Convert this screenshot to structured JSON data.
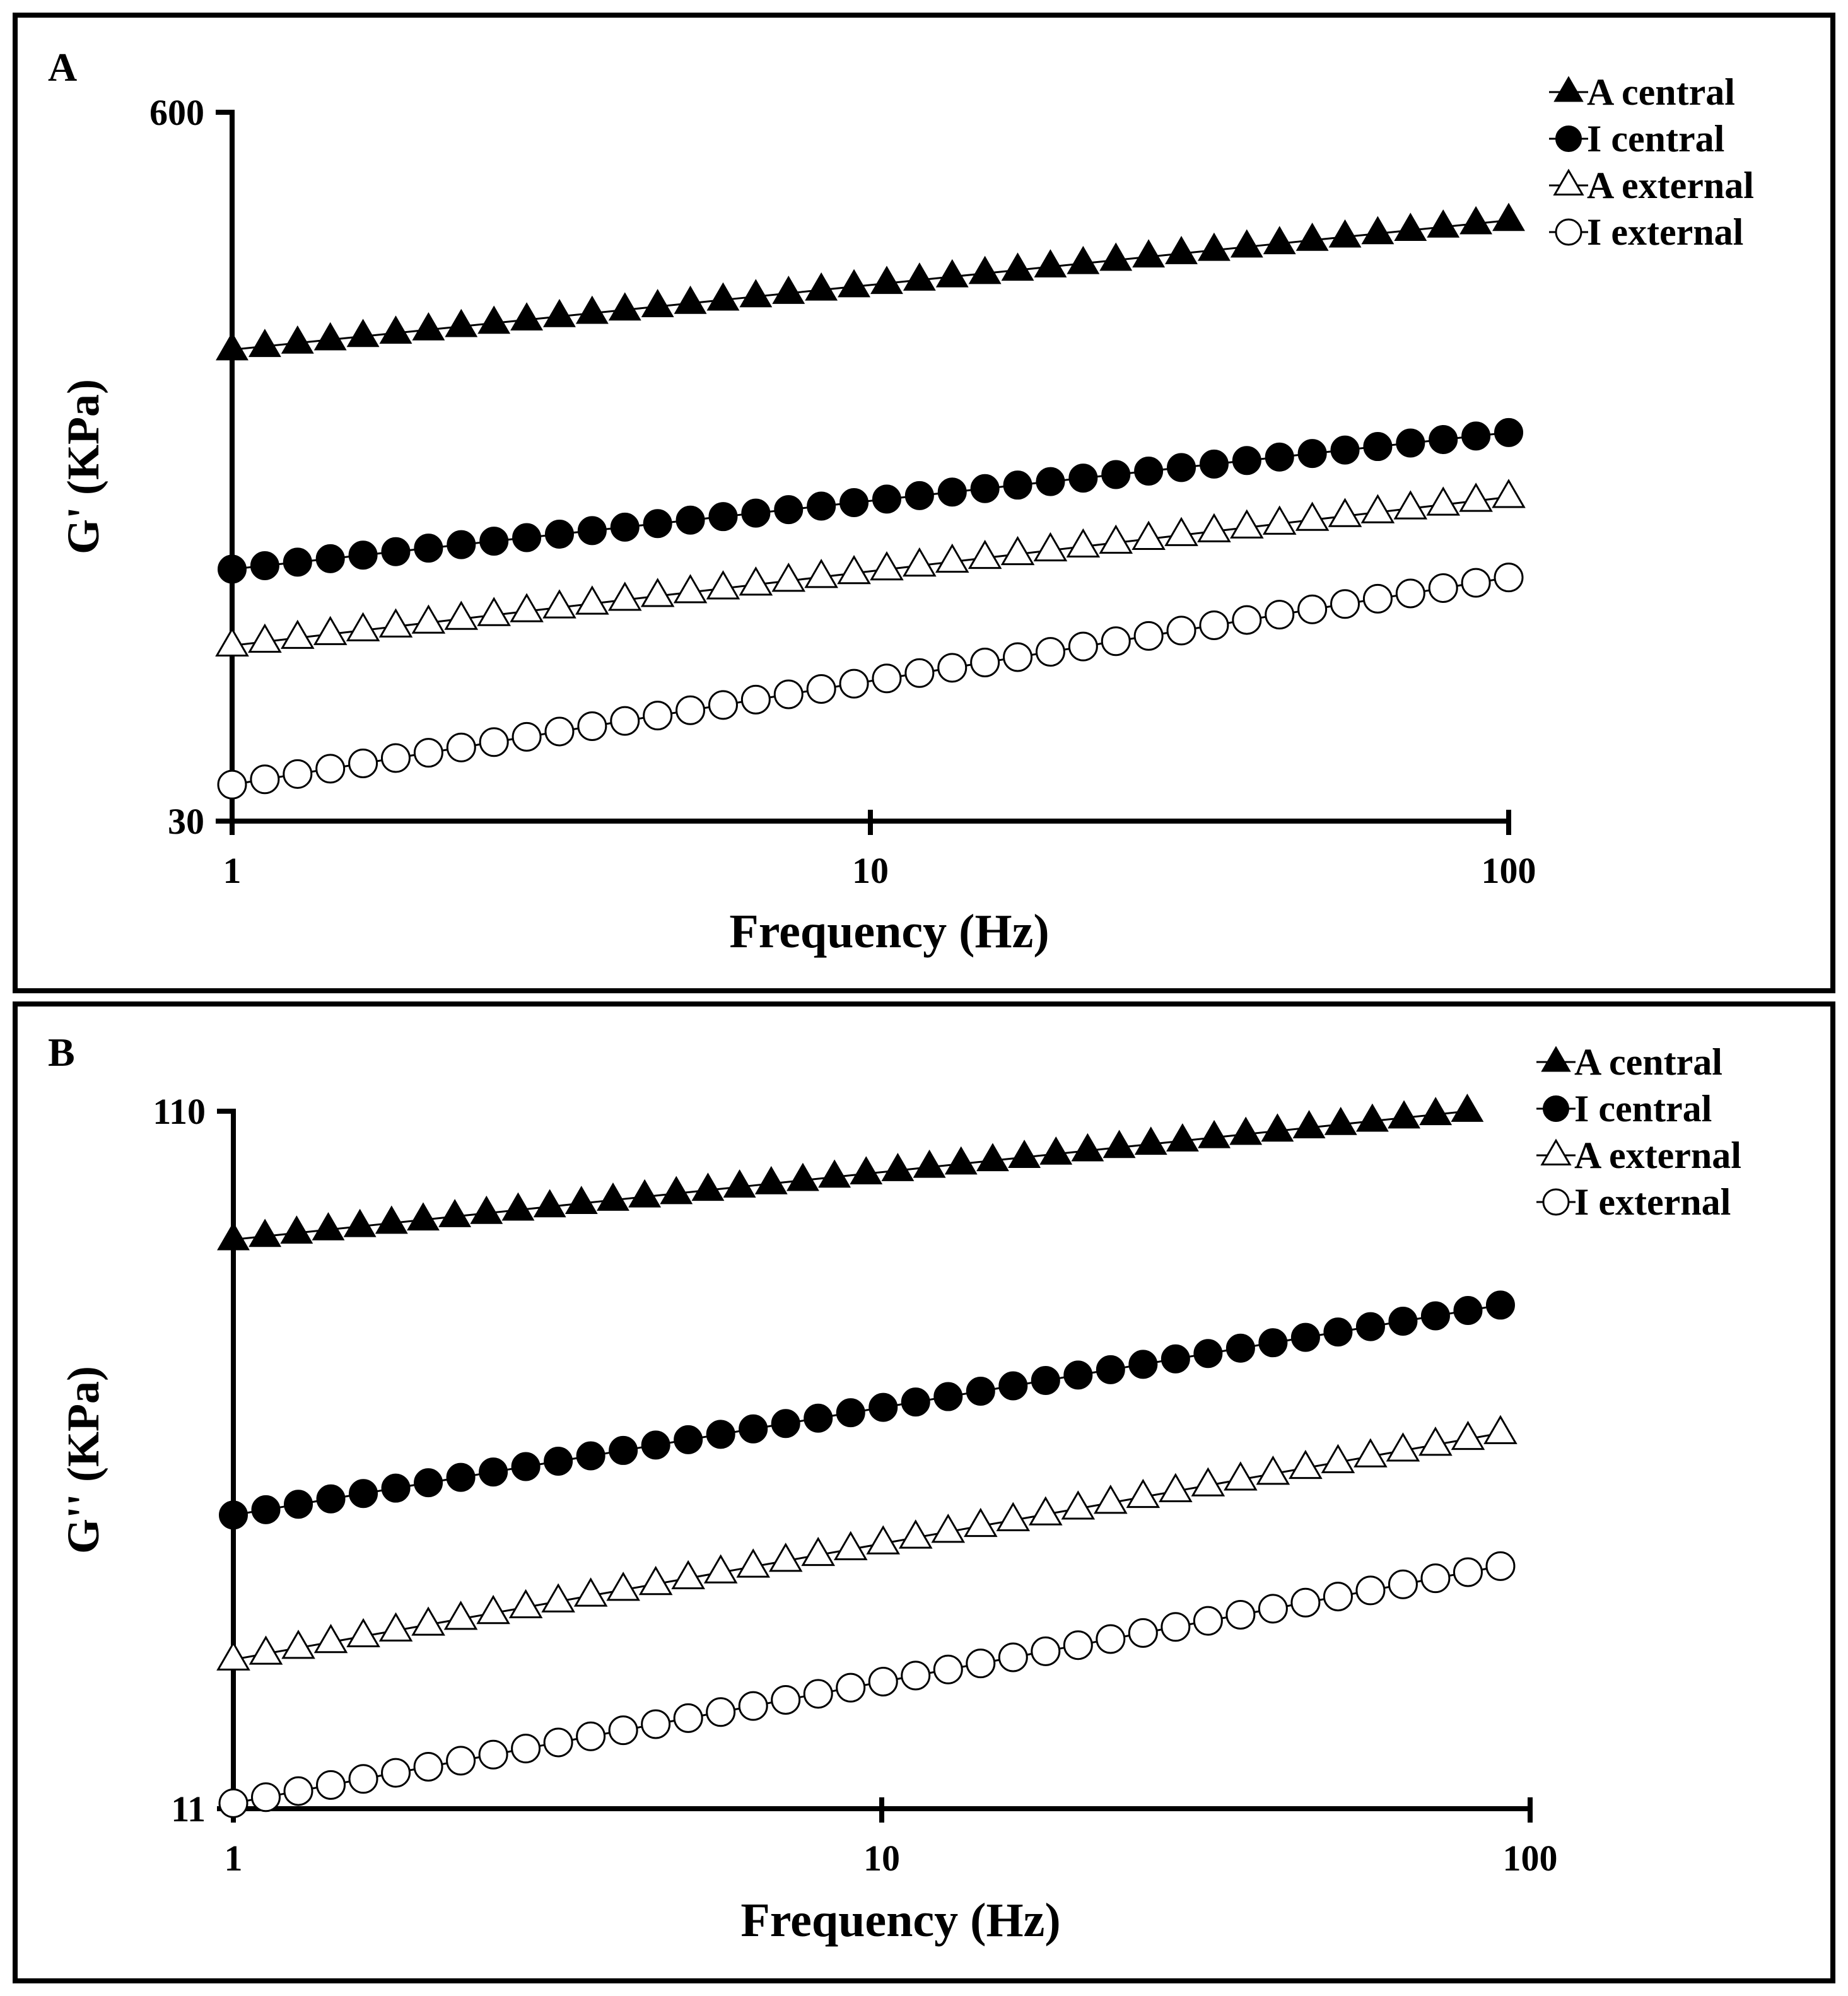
{
  "colors": {
    "ink": "#000000",
    "background": "#ffffff"
  },
  "panels": [
    {
      "letter": "A",
      "chart_data": {
        "type": "line",
        "title": "",
        "xlabel": "Frequency (Hz)",
        "ylabel": "G' (KPa)",
        "xscale": "log",
        "yscale": "log",
        "xlim": [
          1,
          100
        ],
        "ylim": [
          30,
          600
        ],
        "xticks": [
          1,
          10,
          100
        ],
        "xtick_labels": [
          "1",
          "10",
          "100"
        ],
        "yticks": [
          30,
          600
        ],
        "ytick_labels": [
          "30",
          "600"
        ],
        "grid": false,
        "legend_position": "top-right",
        "x_range": [
          1,
          100
        ],
        "n_points": 40,
        "series": [
          {
            "name": "A central",
            "marker": "filled-triangle",
            "y_start": 220,
            "y_end": 380
          },
          {
            "name": "I central",
            "marker": "filled-circle",
            "y_start": 87,
            "y_end": 155
          },
          {
            "name": "A external",
            "marker": "open-triangle",
            "y_start": 63,
            "y_end": 118
          },
          {
            "name": "I external",
            "marker": "open-circle",
            "y_start": 35,
            "y_end": 84
          }
        ]
      }
    },
    {
      "letter": "B",
      "chart_data": {
        "type": "line",
        "title": "",
        "xlabel": "Frequency (Hz)",
        "ylabel": "G'' (KPa)",
        "xscale": "log",
        "yscale": "log",
        "xlim": [
          1,
          100
        ],
        "ylim": [
          11,
          110
        ],
        "xticks": [
          1,
          10,
          100
        ],
        "xtick_labels": [
          "1",
          "10",
          "100"
        ],
        "yticks": [
          11,
          110
        ],
        "ytick_labels": [
          "11",
          "110"
        ],
        "grid": false,
        "legend_position": "top-right",
        "x_range": [
          1,
          90
        ],
        "n_points": 40,
        "series": [
          {
            "name": "A central",
            "marker": "filled-triangle",
            "y_start": 72,
            "y_end": 110,
            "x_end": 80
          },
          {
            "name": "I central",
            "marker": "filled-circle",
            "y_start": 29,
            "y_end": 58
          },
          {
            "name": "A external",
            "marker": "open-triangle",
            "y_start": 18,
            "y_end": 38
          },
          {
            "name": "I external",
            "marker": "open-circle",
            "y_start": 11.2,
            "y_end": 24.5
          }
        ]
      }
    }
  ]
}
